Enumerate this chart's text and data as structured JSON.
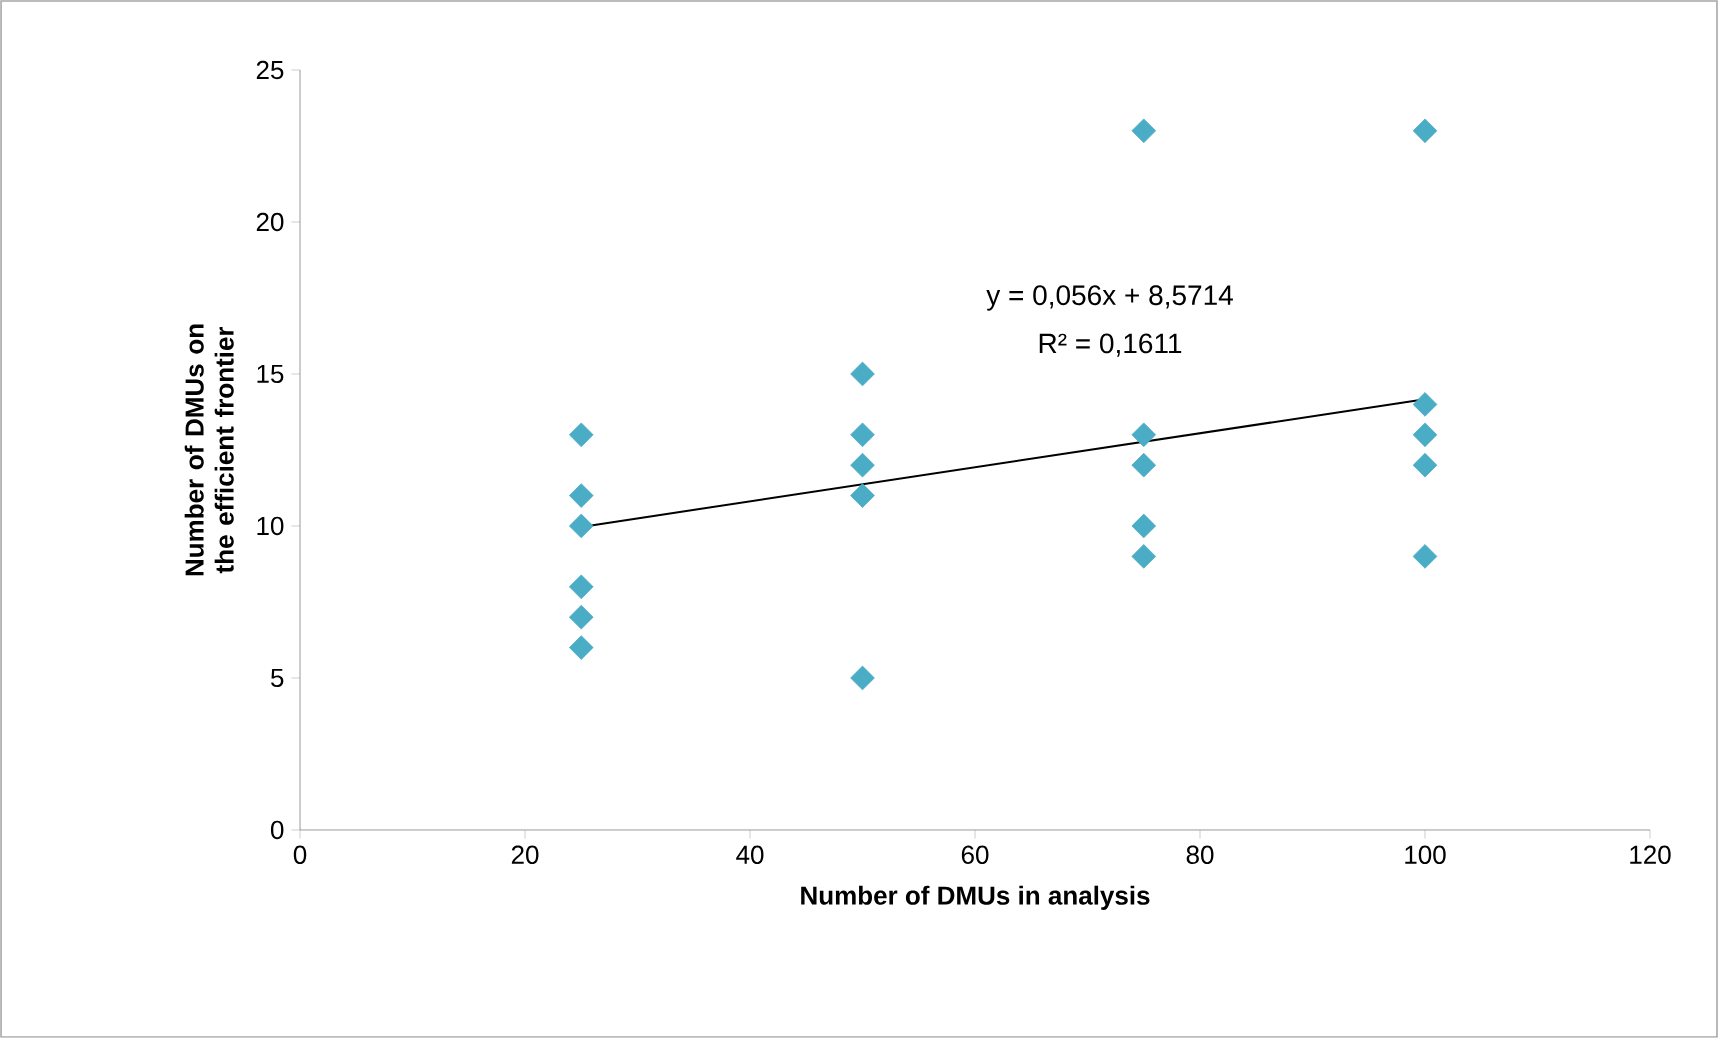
{
  "chart_data": {
    "type": "scatter",
    "xlabel": "Number of DMUs in analysis",
    "ylabel": "Number of DMUs on the efficient frontier",
    "xlim": [
      0,
      120
    ],
    "xticks": [
      0,
      20,
      40,
      60,
      80,
      100,
      120
    ],
    "ylim": [
      0,
      25
    ],
    "yticks": [
      0,
      5,
      10,
      15,
      20,
      25
    ],
    "marker": "diamond",
    "series": [
      {
        "color": "#4bacc6",
        "x": [
          25,
          25,
          25,
          25,
          25,
          25,
          50,
          50,
          50,
          50,
          50,
          75,
          75,
          75,
          75,
          75,
          100,
          100,
          100,
          100,
          100
        ],
        "values": [
          13,
          11,
          10,
          8,
          7,
          6,
          15,
          13,
          12,
          11,
          5,
          23,
          13,
          12,
          10,
          9,
          23,
          14,
          13,
          12,
          9
        ]
      },
      {
        "type": "line",
        "marker": "none",
        "color": "#000000",
        "x": [
          25,
          100
        ],
        "values": [
          9.97,
          14.17
        ]
      }
    ],
    "annotations": [
      "y = 0,056x + 8,5714",
      "R² = 0,1611"
    ]
  }
}
